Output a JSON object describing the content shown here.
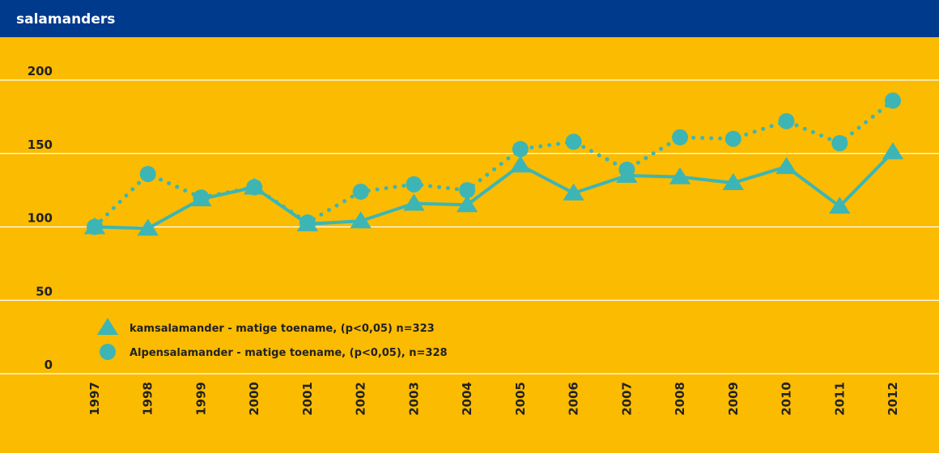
{
  "chart_data": {
    "type": "line",
    "title": "salamanders",
    "categories": [
      "1997",
      "1998",
      "1999",
      "2000",
      "2001",
      "2002",
      "2003",
      "2004",
      "2005",
      "2006",
      "2007",
      "2008",
      "2009",
      "2010",
      "2011",
      "2012"
    ],
    "series": [
      {
        "name": "kamsalamander - matige toename, (p<0,05) n=323",
        "color": "#3db5b5",
        "marker": "triangle",
        "linestyle": "solid",
        "values": [
          100,
          99,
          119,
          127,
          102,
          104,
          116,
          115,
          142,
          123,
          135,
          134,
          130,
          141,
          114,
          151
        ]
      },
      {
        "name": "Alpensalamander - matige toename, (p<0,05), n=328",
        "color": "#3db5b5",
        "marker": "circle",
        "linestyle": "dotted",
        "values": [
          100,
          136,
          120,
          127,
          103,
          124,
          129,
          125,
          153,
          158,
          139,
          161,
          160,
          172,
          157,
          186
        ]
      }
    ],
    "ylim": [
      0,
      200
    ],
    "yticks": [
      0,
      50,
      100,
      150,
      200
    ],
    "grid": true,
    "legend": "lower left"
  }
}
